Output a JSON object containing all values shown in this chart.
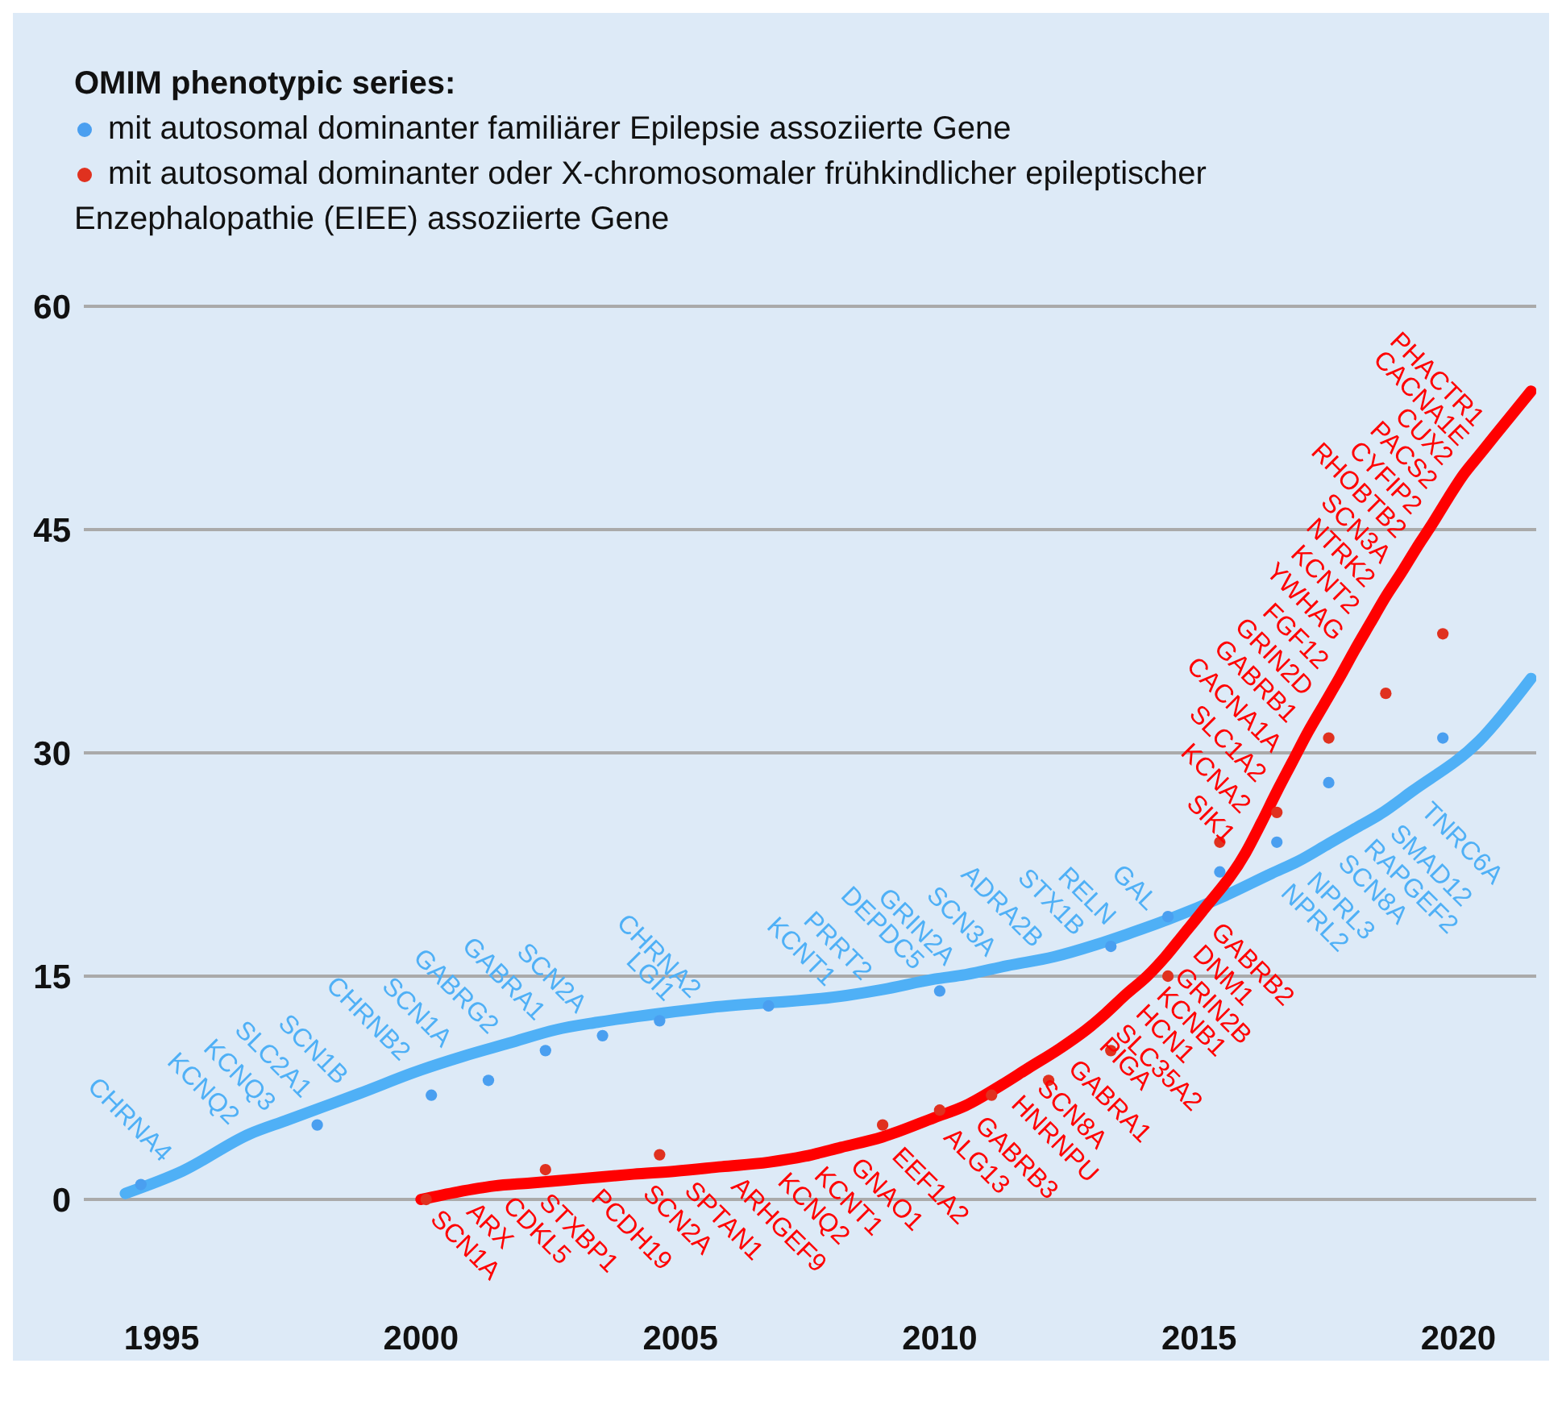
{
  "chart_data": {
    "type": "scatter",
    "legend_title": "OMIM phenotypic series:",
    "legend": "top left",
    "grid": "y",
    "marker": "circle",
    "xlim": [
      1993.5,
      2021.5
    ],
    "xticks": [
      1995,
      2000,
      2005,
      2010,
      2015,
      2020
    ],
    "ylim": [
      0,
      60
    ],
    "yticks": [
      0,
      15,
      30,
      45,
      60
    ],
    "series": [
      {
        "name": "mit autosomal dominanter familiärer Epilepsie assoziierte Gene",
        "color": "#4a9ff0",
        "x": [
          1994.6,
          1998.0,
          2000.2,
          2001.3,
          2002.4,
          2003.5,
          2004.6,
          2006.7,
          2010.0,
          2013.3,
          2014.4,
          2015.4,
          2016.5,
          2017.5,
          2019.7
        ],
        "values": [
          1,
          5,
          7,
          8,
          10,
          11,
          12,
          13,
          14,
          17,
          19,
          22,
          24,
          28,
          31
        ]
      },
      {
        "name": "mit autosomal dominanter oder X-chromosomaler frühkindlicher epileptischer Enzephalopathie (EIEE) assoziierte Gene",
        "color": "#e0311f",
        "x": [
          2000.1,
          2002.4,
          2004.6,
          2008.9,
          2010.0,
          2011.0,
          2012.1,
          2013.3,
          2014.4,
          2015.4,
          2016.5,
          2017.5,
          2018.6,
          2019.7
        ],
        "values": [
          0,
          2,
          3,
          5,
          6,
          7,
          8,
          10,
          15,
          24,
          26,
          31,
          34,
          38
        ]
      },
      {
        "type": "line",
        "marker": "none",
        "color": "#4fb0f6",
        "x": [
          1994.3,
          1995.4,
          1996.7,
          1997.4,
          1998.1,
          1998.8,
          2000.0,
          2000.8,
          2001.7,
          2002.6,
          2003.4,
          2005.1,
          2005.6,
          2008.2,
          2008.9,
          2009.9,
          2010.5,
          2011.3,
          2012.2,
          2013.0,
          2013.6,
          2014.4,
          2015.5,
          2016.4,
          2016.9,
          2017.5,
          2018.0,
          2018.5,
          2019.1,
          2020.4,
          2021.4
        ],
        "values": [
          0.4,
          1.9,
          4.4,
          5.3,
          6.2,
          7.1,
          8.7,
          9.6,
          10.5,
          11.4,
          11.9,
          12.7,
          12.9,
          13.7,
          14.1,
          14.8,
          15.1,
          15.7,
          16.3,
          17.1,
          17.8,
          18.8,
          20.4,
          21.9,
          22.7,
          23.9,
          24.9,
          25.9,
          27.4,
          30.8,
          35
        ],
        "value_labels": [
          null,
          "CHRNA4",
          "KCNQ2",
          "KCNQ3",
          "SLC2A1",
          "SCN1B",
          "CHRNB2",
          "SCN1A",
          "GABRG2",
          "GABRA1",
          "SCN2A",
          "LGI1",
          "CHRNA2",
          "KCNT1",
          "PRRT2",
          "DEPDC5",
          "GRIN2A",
          "SCN3A",
          "ADRA2B",
          "STX1B",
          "RELN",
          "GAL",
          null,
          "NPRL2",
          "NPRL3",
          "SCN8A",
          "RAPGEF2",
          "SMAD12",
          "TNRC6A",
          null,
          null
        ]
      },
      {
        "type": "line",
        "marker": "none",
        "color": "#ff0000",
        "x": [
          2000.0,
          2000.7,
          2001.4,
          2002.1,
          2003.1,
          2004.1,
          2004.9,
          2005.8,
          2006.7,
          2007.4,
          2008.1,
          2008.9,
          2009.9,
          2010.5,
          2011.2,
          2011.7,
          2012.3,
          2012.9,
          2013.2,
          2013.6,
          2014.0,
          2014.35,
          2014.7,
          2015.05,
          2015.9,
          2016.2,
          2016.5,
          2016.8,
          2017.1,
          2017.4,
          2017.7,
          2018.0,
          2018.3,
          2018.6,
          2018.9,
          2019.2,
          2019.5,
          2019.8,
          2020.1,
          2020.4,
          2020.7,
          2021.4
        ],
        "values": [
          0,
          0.5,
          0.9,
          1.1,
          1.4,
          1.7,
          1.9,
          2.2,
          2.5,
          2.9,
          3.5,
          4.2,
          5.5,
          6.3,
          7.7,
          8.8,
          10.1,
          11.6,
          12.5,
          13.8,
          15.0,
          16.3,
          17.8,
          19.3,
          23.3,
          25.3,
          27.4,
          29.4,
          31.4,
          33.2,
          35.0,
          36.9,
          38.7,
          40.5,
          42.1,
          43.8,
          45.4,
          47.1,
          48.7,
          50.0,
          51.3,
          54.3
        ],
        "value_labels": [
          "SCN1A",
          "ARX",
          "CDKL5",
          "STXBP1",
          "PCDH19",
          "SCN2A",
          "SPTAN1",
          "ARHGEF9",
          "KCNQ2",
          "KCNT1",
          "GNAO1",
          "EEF1A2",
          "ALG13",
          "GABRB3",
          "HNRNPU",
          "SCN8A",
          "GABRA1",
          "PIGA",
          "SLC35A2",
          "HCN1",
          "KCNB1",
          "GRIN2B",
          "DNM1",
          "GABRB2",
          "SIK1",
          "KCNA2",
          "SLC1A2",
          "CACNA1A",
          "GABRB1",
          "GRIN2D",
          "FGF12",
          "YWHAG",
          "KCNT2",
          "NTRK2",
          "SCN3A",
          "RHOBTB2",
          "CYFIP2",
          "PACS2",
          "CUX2",
          "CACNA1E",
          "PHACTR1",
          null
        ]
      }
    ]
  }
}
